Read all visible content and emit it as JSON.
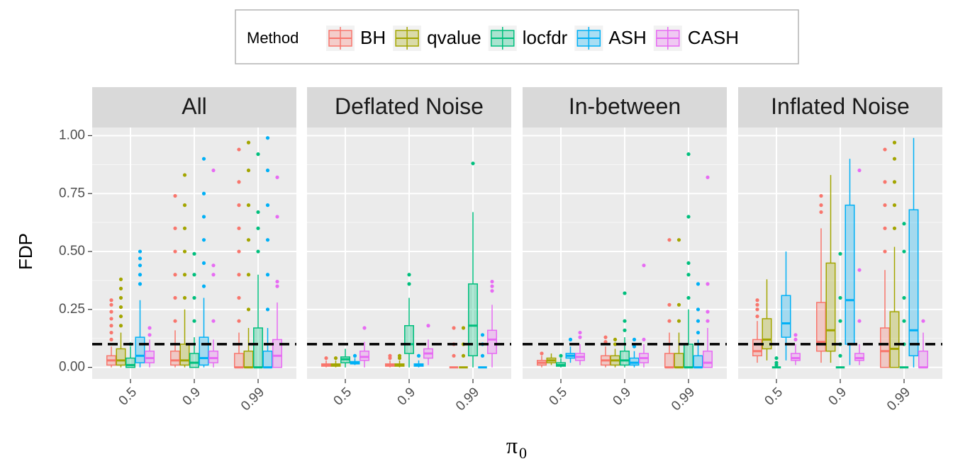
{
  "chart_data": {
    "type": "boxplot",
    "legend_title": "Method",
    "ylabel": "FDP",
    "xlabel": "π",
    "xlabel_subscript": "0",
    "categories": [
      "0.5",
      "0.9",
      "0.99"
    ],
    "ylim": [
      -0.05,
      1.035
    ],
    "yticks": [
      {
        "value": 0,
        "label": "0.00"
      },
      0.25,
      {
        "value": 0.5,
        "label": "0.50"
      },
      0.75,
      {
        "value": 1,
        "label": "1.00"
      }
    ],
    "grid": true,
    "hline": 0.1,
    "methods": [
      {
        "name": "BH",
        "color": "#F8766D"
      },
      {
        "name": "qvalue",
        "color": "#A3A500"
      },
      {
        "name": "locfdr",
        "color": "#00BF7D"
      },
      {
        "name": "ASH",
        "color": "#00B0F6"
      },
      {
        "name": "CASH",
        "color": "#E76BF3"
      }
    ],
    "facets": [
      {
        "title": "All",
        "series": [
          {
            "boxes": [
              [
                0,
                0.01,
                0.03,
                0.05,
                0.09
              ],
              [
                0,
                0.01,
                0.03,
                0.07,
                0.16
              ],
              [
                0,
                0,
                0,
                0.06,
                0.15
              ]
            ],
            "outliers": [
              [
                0.12,
                0.15,
                0.18,
                0.21,
                0.24,
                0.27,
                0.29
              ],
              [
                0.2,
                0.3,
                0.4,
                0.5,
                0.6,
                0.74
              ],
              [
                0.2,
                0.3,
                0.4,
                0.5,
                0.6,
                0.7,
                0.8,
                0.94
              ]
            ]
          },
          {
            "boxes": [
              [
                0,
                0.01,
                0.03,
                0.08,
                0.15
              ],
              [
                0,
                0.01,
                0.03,
                0.1,
                0.25
              ],
              [
                0,
                0,
                0,
                0.07,
                0.17
              ]
            ],
            "outliers": [
              [
                0.18,
                0.22,
                0.26,
                0.3,
                0.34,
                0.38
              ],
              [
                0.3,
                0.4,
                0.5,
                0.6,
                0.7,
                0.83
              ],
              [
                0.25,
                0.4,
                0.55,
                0.7,
                0.85,
                0.97
              ]
            ]
          },
          {
            "boxes": [
              [
                0,
                0,
                0.01,
                0.04,
                0.09
              ],
              [
                0,
                0,
                0.02,
                0.06,
                0.13
              ],
              [
                0,
                0,
                0,
                0.17,
                0.4
              ]
            ],
            "outliers": [
              [
                0.1
              ],
              [
                0.2,
                0.3,
                0.4,
                0.49
              ],
              [
                0.5,
                0.6,
                0.67,
                0.92
              ]
            ]
          },
          {
            "boxes": [
              [
                0,
                0.02,
                0.05,
                0.13,
                0.29
              ],
              [
                0,
                0.01,
                0.04,
                0.13,
                0.3
              ],
              [
                0,
                0,
                0,
                0.07,
                0.17
              ]
            ],
            "outliers": [
              [
                0.36,
                0.4,
                0.44,
                0.47,
                0.5
              ],
              [
                0.35,
                0.45,
                0.55,
                0.65,
                0.75,
                0.9
              ],
              [
                0.25,
                0.4,
                0.55,
                0.7,
                0.85,
                0.99
              ]
            ]
          },
          {
            "boxes": [
              [
                0,
                0.02,
                0.04,
                0.07,
                0.12
              ],
              [
                0,
                0.02,
                0.04,
                0.07,
                0.12
              ],
              [
                0,
                0,
                0.05,
                0.12,
                0.28
              ]
            ],
            "outliers": [
              [
                0.14,
                0.17
              ],
              [
                0.2,
                0.4,
                0.44,
                0.85
              ],
              [
                0.35,
                0.37,
                0.65,
                0.82
              ]
            ]
          }
        ]
      },
      {
        "title": "Deflated Noise",
        "series": [
          {
            "boxes": [
              [
                0,
                0.005,
                0.01,
                0.015,
                0.03
              ],
              [
                0,
                0.005,
                0.01,
                0.015,
                0.03
              ],
              [
                0,
                0,
                0,
                0,
                0
              ]
            ],
            "outliers": [
              [
                0.04
              ],
              [
                0.04,
                0.05
              ],
              [
                0.05,
                0.1,
                0.17
              ]
            ]
          },
          {
            "boxes": [
              [
                0,
                0.005,
                0.01,
                0.015,
                0.03
              ],
              [
                0,
                0.005,
                0.01,
                0.015,
                0.03
              ],
              [
                0,
                0,
                0,
                0,
                0
              ]
            ],
            "outliers": [
              [
                0.04
              ],
              [
                0.04,
                0.05
              ],
              [
                0.05,
                0.1,
                0.17
              ]
            ]
          },
          {
            "boxes": [
              [
                0,
                0.02,
                0.035,
                0.045,
                0.08
              ],
              [
                0,
                0.06,
                0.1,
                0.18,
                0.3
              ],
              [
                0,
                0.05,
                0.18,
                0.36,
                0.67
              ]
            ],
            "outliers": [
              [],
              [
                0.36,
                0.4
              ],
              [
                0.88
              ]
            ]
          },
          {
            "boxes": [
              [
                0.01,
                0.015,
                0.02,
                0.025,
                0.04
              ],
              [
                0,
                0.005,
                0.01,
                0.015,
                0.03
              ],
              [
                0,
                0,
                0,
                0,
                0
              ]
            ],
            "outliers": [
              [
                0.05
              ],
              [
                0.05
              ],
              [
                0.05,
                0.1,
                0.14
              ]
            ]
          },
          {
            "boxes": [
              [
                0,
                0.03,
                0.045,
                0.07,
                0.11
              ],
              [
                0.01,
                0.04,
                0.06,
                0.08,
                0.12
              ],
              [
                0,
                0.06,
                0.12,
                0.16,
                0.27
              ]
            ],
            "outliers": [
              [
                0.17
              ],
              [
                0.18
              ],
              [
                0.33,
                0.35,
                0.37
              ]
            ]
          }
        ]
      },
      {
        "title": "In-between",
        "series": [
          {
            "boxes": [
              [
                0,
                0.01,
                0.02,
                0.03,
                0.05
              ],
              [
                0,
                0.01,
                0.03,
                0.05,
                0.09
              ],
              [
                0,
                0,
                0,
                0.06,
                0.15
              ]
            ],
            "outliers": [
              [
                0.06
              ],
              [
                0.11,
                0.13
              ],
              [
                0.2,
                0.27,
                0.55
              ]
            ]
          },
          {
            "boxes": [
              [
                0.01,
                0.02,
                0.03,
                0.04,
                0.06
              ],
              [
                0,
                0.01,
                0.03,
                0.05,
                0.08
              ],
              [
                0,
                0,
                0,
                0.06,
                0.15
              ]
            ],
            "outliers": [
              [],
              [
                0.1,
                0.12
              ],
              [
                0.2,
                0.27,
                0.55
              ]
            ]
          },
          {
            "boxes": [
              [
                0,
                0.005,
                0.01,
                0.02,
                0.04
              ],
              [
                0,
                0.01,
                0.03,
                0.07,
                0.13
              ],
              [
                0,
                0,
                0,
                0.1,
                0.25
              ]
            ],
            "outliers": [
              [
                0.05
              ],
              [
                0.16,
                0.2,
                0.32
              ],
              [
                0.3,
                0.4,
                0.45,
                0.65,
                0.92
              ]
            ]
          },
          {
            "boxes": [
              [
                0.02,
                0.04,
                0.05,
                0.06,
                0.09
              ],
              [
                0,
                0.01,
                0.02,
                0.04,
                0.07
              ],
              [
                0,
                0,
                0,
                0.05,
                0.12
              ]
            ],
            "outliers": [
              [
                0.12
              ],
              [
                0.09,
                0.12
              ],
              [
                0.15,
                0.2,
                0.25,
                0.36
              ]
            ]
          },
          {
            "boxes": [
              [
                0.01,
                0.03,
                0.045,
                0.06,
                0.1
              ],
              [
                0,
                0.02,
                0.04,
                0.06,
                0.1
              ],
              [
                0,
                0,
                0.02,
                0.07,
                0.17
              ]
            ],
            "outliers": [
              [
                0.13,
                0.15
              ],
              [
                0.12,
                0.44
              ],
              [
                0.2,
                0.24,
                0.36,
                0.82
              ]
            ]
          }
        ]
      },
      {
        "title": "Inflated Noise",
        "series": [
          {
            "boxes": [
              [
                0.02,
                0.05,
                0.07,
                0.12,
                0.2
              ],
              [
                0.02,
                0.07,
                0.11,
                0.28,
                0.6
              ],
              [
                0,
                0,
                0.07,
                0.17,
                0.42
              ]
            ],
            "outliers": [
              [
                0.22,
                0.25,
                0.27,
                0.29
              ],
              [
                0.67,
                0.7,
                0.74
              ],
              [
                0.5,
                0.6,
                0.7,
                0.8,
                0.94
              ]
            ]
          },
          {
            "boxes": [
              [
                0.03,
                0.08,
                0.12,
                0.21,
                0.38
              ],
              [
                0.02,
                0.07,
                0.16,
                0.45,
                0.83
              ],
              [
                0,
                0,
                0.08,
                0.24,
                0.52
              ]
            ],
            "outliers": [
              [],
              [],
              [
                0.6,
                0.7,
                0.8,
                0.9,
                0.97
              ]
            ]
          },
          {
            "boxes": [
              [
                0,
                0,
                0,
                0,
                0
              ],
              [
                0,
                0,
                0,
                0,
                0
              ],
              [
                0,
                0,
                0,
                0,
                0
              ]
            ],
            "outliers": [
              [
                0.01,
                0.02,
                0.04
              ],
              [
                0.05,
                0.1,
                0.2,
                0.3,
                0.49
              ],
              [
                0.1,
                0.2,
                0.3,
                0.5,
                0.62
              ]
            ]
          },
          {
            "boxes": [
              [
                0.03,
                0.13,
                0.19,
                0.31,
                0.5
              ],
              [
                0.01,
                0.1,
                0.29,
                0.7,
                0.9
              ],
              [
                0,
                0.05,
                0.16,
                0.68,
                0.99
              ]
            ],
            "outliers": [
              [],
              [],
              []
            ]
          },
          {
            "boxes": [
              [
                0.01,
                0.03,
                0.04,
                0.06,
                0.1
              ],
              [
                0.01,
                0.03,
                0.04,
                0.06,
                0.1
              ],
              [
                0,
                0,
                0,
                0.07,
                0.15
              ]
            ],
            "outliers": [
              [
                0.12,
                0.14
              ],
              [
                0.2,
                0.42,
                0.85
              ],
              [
                0.2
              ]
            ]
          }
        ]
      }
    ]
  }
}
